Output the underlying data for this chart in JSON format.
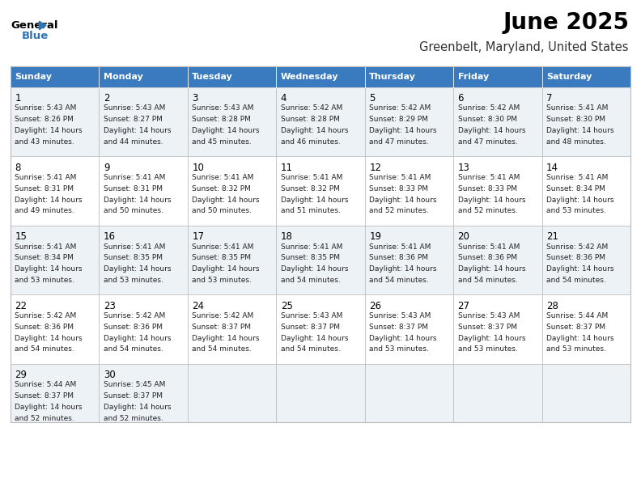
{
  "title": "June 2025",
  "subtitle": "Greenbelt, Maryland, United States",
  "header_color": "#3a7abf",
  "header_text_color": "#ffffff",
  "cell_bg_even": "#edf2f7",
  "cell_bg_odd": "#ffffff",
  "border_color": "#bbbbbb",
  "days_of_week": [
    "Sunday",
    "Monday",
    "Tuesday",
    "Wednesday",
    "Thursday",
    "Friday",
    "Saturday"
  ],
  "weeks": [
    [
      {
        "day": 1,
        "sunrise": "5:43 AM",
        "sunset": "8:26 PM",
        "daylight": "14 hours",
        "daylight2": "and 43 minutes."
      },
      {
        "day": 2,
        "sunrise": "5:43 AM",
        "sunset": "8:27 PM",
        "daylight": "14 hours",
        "daylight2": "and 44 minutes."
      },
      {
        "day": 3,
        "sunrise": "5:43 AM",
        "sunset": "8:28 PM",
        "daylight": "14 hours",
        "daylight2": "and 45 minutes."
      },
      {
        "day": 4,
        "sunrise": "5:42 AM",
        "sunset": "8:28 PM",
        "daylight": "14 hours",
        "daylight2": "and 46 minutes."
      },
      {
        "day": 5,
        "sunrise": "5:42 AM",
        "sunset": "8:29 PM",
        "daylight": "14 hours",
        "daylight2": "and 47 minutes."
      },
      {
        "day": 6,
        "sunrise": "5:42 AM",
        "sunset": "8:30 PM",
        "daylight": "14 hours",
        "daylight2": "and 47 minutes."
      },
      {
        "day": 7,
        "sunrise": "5:41 AM",
        "sunset": "8:30 PM",
        "daylight": "14 hours",
        "daylight2": "and 48 minutes."
      }
    ],
    [
      {
        "day": 8,
        "sunrise": "5:41 AM",
        "sunset": "8:31 PM",
        "daylight": "14 hours",
        "daylight2": "and 49 minutes."
      },
      {
        "day": 9,
        "sunrise": "5:41 AM",
        "sunset": "8:31 PM",
        "daylight": "14 hours",
        "daylight2": "and 50 minutes."
      },
      {
        "day": 10,
        "sunrise": "5:41 AM",
        "sunset": "8:32 PM",
        "daylight": "14 hours",
        "daylight2": "and 50 minutes."
      },
      {
        "day": 11,
        "sunrise": "5:41 AM",
        "sunset": "8:32 PM",
        "daylight": "14 hours",
        "daylight2": "and 51 minutes."
      },
      {
        "day": 12,
        "sunrise": "5:41 AM",
        "sunset": "8:33 PM",
        "daylight": "14 hours",
        "daylight2": "and 52 minutes."
      },
      {
        "day": 13,
        "sunrise": "5:41 AM",
        "sunset": "8:33 PM",
        "daylight": "14 hours",
        "daylight2": "and 52 minutes."
      },
      {
        "day": 14,
        "sunrise": "5:41 AM",
        "sunset": "8:34 PM",
        "daylight": "14 hours",
        "daylight2": "and 53 minutes."
      }
    ],
    [
      {
        "day": 15,
        "sunrise": "5:41 AM",
        "sunset": "8:34 PM",
        "daylight": "14 hours",
        "daylight2": "and 53 minutes."
      },
      {
        "day": 16,
        "sunrise": "5:41 AM",
        "sunset": "8:35 PM",
        "daylight": "14 hours",
        "daylight2": "and 53 minutes."
      },
      {
        "day": 17,
        "sunrise": "5:41 AM",
        "sunset": "8:35 PM",
        "daylight": "14 hours",
        "daylight2": "and 53 minutes."
      },
      {
        "day": 18,
        "sunrise": "5:41 AM",
        "sunset": "8:35 PM",
        "daylight": "14 hours",
        "daylight2": "and 54 minutes."
      },
      {
        "day": 19,
        "sunrise": "5:41 AM",
        "sunset": "8:36 PM",
        "daylight": "14 hours",
        "daylight2": "and 54 minutes."
      },
      {
        "day": 20,
        "sunrise": "5:41 AM",
        "sunset": "8:36 PM",
        "daylight": "14 hours",
        "daylight2": "and 54 minutes."
      },
      {
        "day": 21,
        "sunrise": "5:42 AM",
        "sunset": "8:36 PM",
        "daylight": "14 hours",
        "daylight2": "and 54 minutes."
      }
    ],
    [
      {
        "day": 22,
        "sunrise": "5:42 AM",
        "sunset": "8:36 PM",
        "daylight": "14 hours",
        "daylight2": "and 54 minutes."
      },
      {
        "day": 23,
        "sunrise": "5:42 AM",
        "sunset": "8:36 PM",
        "daylight": "14 hours",
        "daylight2": "and 54 minutes."
      },
      {
        "day": 24,
        "sunrise": "5:42 AM",
        "sunset": "8:37 PM",
        "daylight": "14 hours",
        "daylight2": "and 54 minutes."
      },
      {
        "day": 25,
        "sunrise": "5:43 AM",
        "sunset": "8:37 PM",
        "daylight": "14 hours",
        "daylight2": "and 54 minutes."
      },
      {
        "day": 26,
        "sunrise": "5:43 AM",
        "sunset": "8:37 PM",
        "daylight": "14 hours",
        "daylight2": "and 53 minutes."
      },
      {
        "day": 27,
        "sunrise": "5:43 AM",
        "sunset": "8:37 PM",
        "daylight": "14 hours",
        "daylight2": "and 53 minutes."
      },
      {
        "day": 28,
        "sunrise": "5:44 AM",
        "sunset": "8:37 PM",
        "daylight": "14 hours",
        "daylight2": "and 53 minutes."
      }
    ],
    [
      {
        "day": 29,
        "sunrise": "5:44 AM",
        "sunset": "8:37 PM",
        "daylight": "14 hours",
        "daylight2": "and 52 minutes."
      },
      {
        "day": 30,
        "sunrise": "5:45 AM",
        "sunset": "8:37 PM",
        "daylight": "14 hours",
        "daylight2": "and 52 minutes."
      },
      null,
      null,
      null,
      null,
      null
    ]
  ],
  "logo_color": "#2e75b6",
  "fig_width": 7.92,
  "fig_height": 6.12,
  "dpi": 100
}
